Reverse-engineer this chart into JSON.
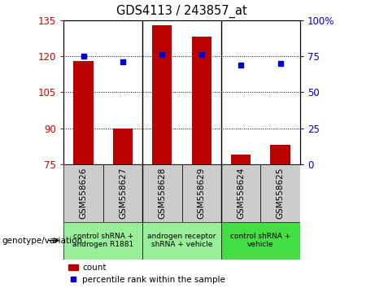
{
  "title": "GDS4113 / 243857_at",
  "samples": [
    "GSM558626",
    "GSM558627",
    "GSM558628",
    "GSM558629",
    "GSM558624",
    "GSM558625"
  ],
  "counts": [
    118,
    90,
    133,
    128,
    79,
    83
  ],
  "percentile_ranks": [
    75,
    71,
    76,
    76,
    69,
    70
  ],
  "ylim_left": [
    75,
    135
  ],
  "ylim_right": [
    0,
    100
  ],
  "yticks_left": [
    75,
    90,
    105,
    120,
    135
  ],
  "yticks_right": [
    0,
    25,
    50,
    75,
    100
  ],
  "bar_color": "#bb0000",
  "dot_color": "#0000cc",
  "gridline_color": "#000000",
  "background_sample_labels": "#cccccc",
  "groups": [
    {
      "label": "control shRNA +\nandrogen R1881",
      "start": 0,
      "end": 1,
      "color": "#99ee99"
    },
    {
      "label": "androgen receptor\nshRNA + vehicle",
      "start": 2,
      "end": 3,
      "color": "#99ee99"
    },
    {
      "label": "control shRNA +\nvehicle",
      "start": 4,
      "end": 5,
      "color": "#44dd44"
    }
  ],
  "genotype_label": "genotype/variation",
  "legend_count_label": "count",
  "legend_percentile_label": "percentile rank within the sample",
  "left_axis_color": "#cc0000",
  "right_axis_color": "#0000cc",
  "group_dividers": [
    1.5,
    3.5
  ]
}
